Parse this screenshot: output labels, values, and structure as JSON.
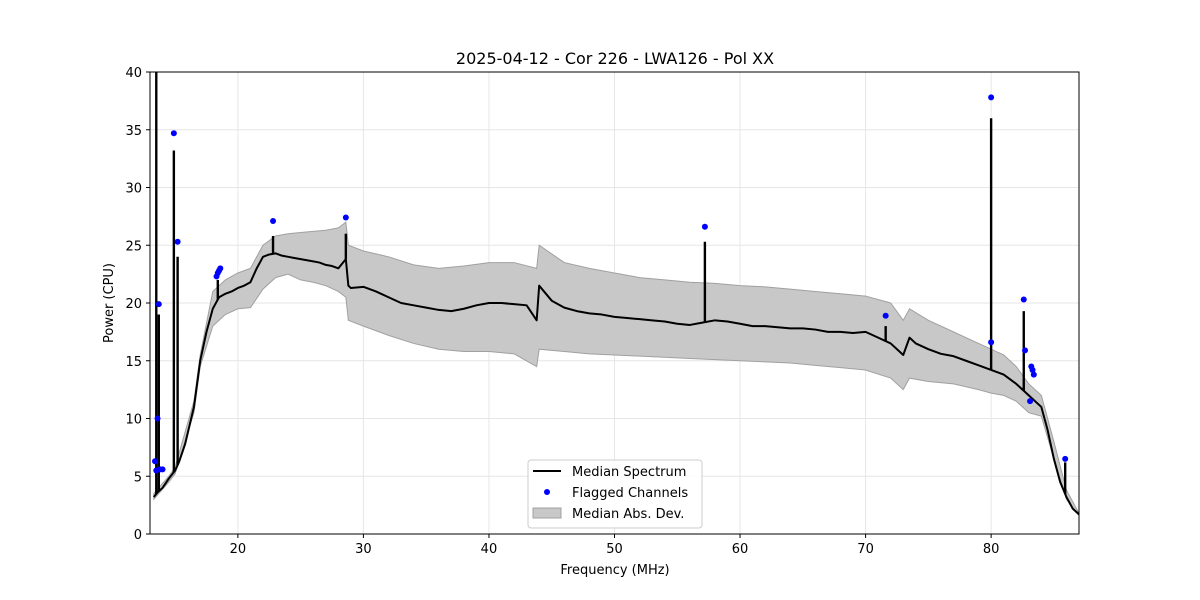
{
  "chart_data": {
    "type": "line",
    "title": "2025-04-12 - Cor 226 - LWA126 - Pol XX",
    "xlabel": "Frequency (MHz)",
    "ylabel": "Power (CPU)",
    "xlim": [
      13,
      87
    ],
    "ylim": [
      0,
      40
    ],
    "xticks": [
      20,
      30,
      40,
      50,
      60,
      70,
      80
    ],
    "yticks": [
      0,
      5,
      10,
      15,
      20,
      25,
      30,
      35,
      40
    ],
    "grid": true,
    "legend_position": "bottom-center",
    "legend": [
      "Median Spectrum",
      "Flagged Channels",
      "Median Abs. Dev."
    ],
    "colors": {
      "median": "#000000",
      "flagged": "#0000ff",
      "mad_fill": "#c8c8c8",
      "mad_edge": "#a0a0a0",
      "grid": "#e6e6e6"
    },
    "series": [
      {
        "name": "Median Spectrum",
        "x": [
          13.3,
          13.6,
          14.0,
          14.5,
          15.0,
          15.3,
          15.8,
          16.5,
          17.0,
          17.5,
          18.0,
          18.5,
          19.0,
          19.5,
          20.0,
          20.5,
          21.0,
          21.5,
          22.0,
          22.5,
          23.0,
          23.5,
          24.0,
          24.5,
          25.0,
          25.5,
          26.0,
          26.5,
          27.0,
          27.5,
          28.0,
          28.6,
          28.8,
          29.0,
          30.0,
          31.0,
          32.0,
          33.0,
          34.0,
          35.0,
          36.0,
          37.0,
          38.0,
          39.0,
          40.0,
          41.0,
          42.0,
          43.0,
          43.8,
          44.0,
          45.0,
          46.0,
          47.0,
          48.0,
          49.0,
          50.0,
          51.0,
          52.0,
          53.0,
          54.0,
          55.0,
          56.0,
          57.0,
          58.0,
          59.0,
          60.0,
          61.0,
          62.0,
          63.0,
          64.0,
          65.0,
          66.0,
          67.0,
          68.0,
          69.0,
          70.0,
          71.0,
          72.0,
          73.0,
          73.5,
          74.0,
          75.0,
          76.0,
          77.0,
          78.0,
          79.0,
          80.0,
          81.0,
          82.0,
          82.5,
          83.0,
          83.5,
          84.0,
          84.5,
          85.0,
          85.5,
          86.0,
          86.5,
          87.0
        ],
        "y": [
          3.2,
          3.6,
          4.0,
          4.8,
          5.5,
          6.2,
          7.8,
          11.0,
          15.0,
          17.5,
          19.5,
          20.5,
          20.8,
          21.0,
          21.3,
          21.5,
          21.8,
          23.0,
          24.0,
          24.2,
          24.3,
          24.1,
          24.0,
          23.9,
          23.8,
          23.7,
          23.6,
          23.5,
          23.3,
          23.2,
          23.0,
          23.8,
          21.5,
          21.3,
          21.4,
          21.0,
          20.5,
          20.0,
          19.8,
          19.6,
          19.4,
          19.3,
          19.5,
          19.8,
          20.0,
          20.0,
          19.9,
          19.8,
          18.5,
          21.5,
          20.2,
          19.6,
          19.3,
          19.1,
          19.0,
          18.8,
          18.7,
          18.6,
          18.5,
          18.4,
          18.2,
          18.1,
          18.3,
          18.5,
          18.4,
          18.2,
          18.0,
          18.0,
          17.9,
          17.8,
          17.8,
          17.7,
          17.5,
          17.5,
          17.4,
          17.5,
          17.0,
          16.5,
          15.5,
          17.0,
          16.5,
          16.0,
          15.6,
          15.4,
          15.0,
          14.6,
          14.2,
          13.8,
          13.0,
          12.5,
          12.0,
          11.5,
          11.0,
          9.0,
          6.5,
          4.5,
          3.2,
          2.2,
          1.7
        ]
      },
      {
        "name": "Median Abs. Dev.",
        "x": [
          13.3,
          14.5,
          15.0,
          16.5,
          17.0,
          18.0,
          19.0,
          20.0,
          21.0,
          22.0,
          23.0,
          24.0,
          25.0,
          26.0,
          27.0,
          28.0,
          28.6,
          28.8,
          30.0,
          32.0,
          34.0,
          36.0,
          38.0,
          40.0,
          42.0,
          43.8,
          44.0,
          46.0,
          48.0,
          50.0,
          52.0,
          54.0,
          56.0,
          58.0,
          60.0,
          62.0,
          64.0,
          66.0,
          68.0,
          70.0,
          72.0,
          73.0,
          73.5,
          75.0,
          77.0,
          79.0,
          80.0,
          81.0,
          82.0,
          83.0,
          84.0,
          85.0,
          86.0,
          87.0
        ],
        "upper": [
          3.5,
          5.0,
          5.8,
          11.5,
          15.5,
          21.0,
          22.0,
          22.6,
          23.0,
          25.0,
          25.8,
          26.0,
          26.1,
          26.2,
          26.3,
          26.5,
          27.0,
          25.0,
          24.5,
          24.0,
          23.3,
          23.0,
          23.2,
          23.5,
          23.5,
          23.0,
          25.0,
          23.5,
          23.0,
          22.6,
          22.2,
          22.0,
          21.8,
          21.7,
          21.5,
          21.4,
          21.2,
          21.0,
          20.8,
          20.6,
          20.0,
          18.5,
          19.5,
          18.5,
          17.5,
          16.5,
          16.0,
          15.5,
          14.5,
          13.0,
          12.0,
          8.0,
          3.8,
          1.8
        ],
        "lower": [
          3.0,
          4.5,
          5.2,
          10.5,
          14.5,
          18.0,
          19.0,
          19.5,
          19.6,
          21.2,
          22.2,
          22.5,
          22.0,
          21.8,
          21.5,
          21.0,
          20.5,
          18.5,
          18.0,
          17.2,
          16.5,
          16.0,
          15.8,
          15.8,
          15.6,
          14.5,
          16.0,
          15.8,
          15.6,
          15.5,
          15.4,
          15.3,
          15.2,
          15.1,
          15.0,
          14.9,
          14.8,
          14.6,
          14.4,
          14.2,
          13.5,
          12.5,
          13.5,
          13.2,
          13.0,
          12.5,
          12.2,
          12.0,
          11.5,
          10.5,
          10.2,
          6.5,
          3.0,
          1.6
        ]
      },
      {
        "name": "Flagged Channels",
        "x": [
          13.4,
          13.5,
          13.6,
          13.7,
          13.8,
          14.0,
          14.9,
          15.2,
          18.3,
          18.4,
          18.5,
          18.6,
          22.8,
          28.6,
          57.2,
          71.6,
          80.0,
          80.0,
          82.6,
          82.7,
          83.1,
          83.2,
          83.3,
          83.4,
          85.9
        ],
        "y": [
          6.3,
          5.5,
          10.0,
          19.9,
          5.6,
          5.6,
          34.7,
          25.3,
          22.3,
          22.6,
          22.8,
          23.0,
          27.1,
          27.4,
          26.6,
          18.9,
          37.8,
          16.6,
          20.3,
          15.9,
          11.5,
          14.5,
          14.2,
          13.8,
          6.5
        ]
      }
    ],
    "spikes": [
      {
        "x": 13.5,
        "y": 40
      },
      {
        "x": 13.7,
        "y": 19.0
      },
      {
        "x": 14.9,
        "y": 33.2
      },
      {
        "x": 15.2,
        "y": 24.0
      },
      {
        "x": 18.4,
        "y": 22.0
      },
      {
        "x": 22.8,
        "y": 25.8
      },
      {
        "x": 28.6,
        "y": 26.0
      },
      {
        "x": 57.2,
        "y": 25.3
      },
      {
        "x": 71.6,
        "y": 18.0
      },
      {
        "x": 80.0,
        "y": 36.0
      },
      {
        "x": 82.6,
        "y": 19.3
      },
      {
        "x": 85.9,
        "y": 6.2
      }
    ]
  }
}
